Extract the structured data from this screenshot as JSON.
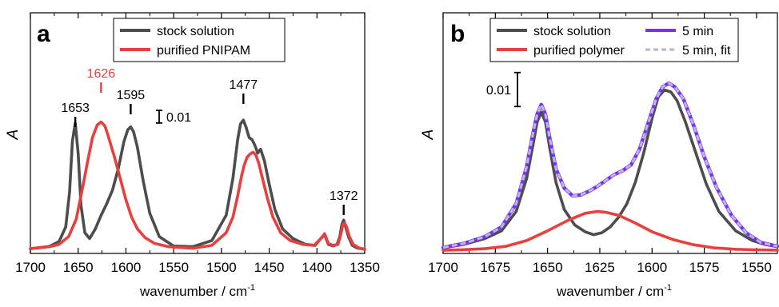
{
  "chart_data": [
    {
      "panel": "a",
      "type": "line",
      "xlabel": "wavenumber / cm",
      "xlabel_sup": "-1",
      "ylabel": "A",
      "xlim": [
        1700,
        1350
      ],
      "x_reversed": true,
      "x_ticks": [
        1700,
        1650,
        1600,
        1550,
        1500,
        1450,
        1400,
        1350
      ],
      "y_range": [
        0,
        1
      ],
      "y_ticks_labels": false,
      "scale_bar_label": "0.01",
      "scale_bar_size": 0.065,
      "legend_position": "top-center",
      "series": [
        {
          "name": "stock solution",
          "color": "#4d4d4d",
          "x": [
            1700,
            1680,
            1670,
            1663,
            1659,
            1656,
            1653,
            1650,
            1647,
            1643,
            1638,
            1632,
            1626,
            1620,
            1614,
            1608,
            1602,
            1598,
            1595,
            1592,
            1588,
            1582,
            1575,
            1565,
            1550,
            1530,
            1510,
            1495,
            1488,
            1483,
            1480,
            1477,
            1474,
            1471,
            1468,
            1465,
            1462,
            1459,
            1455,
            1450,
            1444,
            1436,
            1425,
            1412,
            1402,
            1396,
            1392,
            1388,
            1383,
            1379,
            1376,
            1374,
            1372,
            1370,
            1367,
            1363,
            1358,
            1350
          ],
          "y": [
            0.008,
            0.02,
            0.045,
            0.12,
            0.3,
            0.56,
            0.655,
            0.5,
            0.23,
            0.09,
            0.06,
            0.11,
            0.18,
            0.24,
            0.31,
            0.42,
            0.56,
            0.62,
            0.635,
            0.61,
            0.53,
            0.36,
            0.19,
            0.07,
            0.022,
            0.018,
            0.05,
            0.18,
            0.37,
            0.57,
            0.65,
            0.67,
            0.63,
            0.58,
            0.57,
            0.54,
            0.5,
            0.52,
            0.46,
            0.34,
            0.21,
            0.11,
            0.06,
            0.03,
            0.025,
            0.06,
            0.08,
            0.03,
            0.022,
            0.03,
            0.07,
            0.13,
            0.155,
            0.12,
            0.07,
            0.025,
            0.012,
            0.005
          ]
        },
        {
          "name": "purified PNIPAM",
          "color": "#e8403e",
          "x": [
            1700,
            1680,
            1670,
            1660,
            1652,
            1645,
            1640,
            1635,
            1630,
            1626,
            1622,
            1618,
            1612,
            1606,
            1600,
            1594,
            1588,
            1580,
            1570,
            1555,
            1530,
            1510,
            1495,
            1488,
            1483,
            1479,
            1476,
            1473,
            1470,
            1467,
            1464,
            1461,
            1457,
            1452,
            1446,
            1438,
            1428,
            1415,
            1403,
            1396,
            1392,
            1388,
            1383,
            1378,
            1375,
            1373,
            1371,
            1369,
            1366,
            1362,
            1356,
            1350
          ],
          "y": [
            0.008,
            0.018,
            0.03,
            0.07,
            0.16,
            0.33,
            0.46,
            0.58,
            0.645,
            0.66,
            0.64,
            0.58,
            0.48,
            0.37,
            0.26,
            0.17,
            0.11,
            0.065,
            0.035,
            0.018,
            0.01,
            0.025,
            0.09,
            0.17,
            0.28,
            0.38,
            0.44,
            0.48,
            0.495,
            0.505,
            0.49,
            0.45,
            0.37,
            0.27,
            0.17,
            0.09,
            0.05,
            0.03,
            0.025,
            0.06,
            0.085,
            0.035,
            0.025,
            0.03,
            0.08,
            0.13,
            0.14,
            0.12,
            0.07,
            0.03,
            0.012,
            0.005
          ]
        }
      ],
      "annotations": [
        {
          "text": "1653",
          "x": 1653,
          "color": "#000000"
        },
        {
          "text": "1626",
          "x": 1626,
          "color": "#e8403e"
        },
        {
          "text": "1595",
          "x": 1595,
          "color": "#000000"
        },
        {
          "text": "1477",
          "x": 1477,
          "color": "#000000"
        },
        {
          "text": "1372",
          "x": 1372,
          "color": "#000000"
        }
      ]
    },
    {
      "panel": "b",
      "type": "line",
      "xlabel": "wavenumber / cm",
      "xlabel_sup": "-1",
      "ylabel": "A",
      "xlim": [
        1700,
        1540
      ],
      "x_reversed": true,
      "x_ticks": [
        1700,
        1675,
        1650,
        1625,
        1600,
        1575,
        1550
      ],
      "y_range": [
        0,
        1
      ],
      "y_ticks_labels": false,
      "scale_bar_label": "0.01",
      "scale_bar_size": 0.175,
      "legend_position": "top",
      "series": [
        {
          "name": "stock solution",
          "color": "#4d4d4d",
          "x": [
            1700,
            1690,
            1680,
            1672,
            1665,
            1660,
            1657,
            1655,
            1653,
            1651,
            1649,
            1646,
            1642,
            1637,
            1632,
            1628,
            1624,
            1620,
            1616,
            1612,
            1608,
            1604,
            1600,
            1597,
            1594,
            1591,
            1588,
            1584,
            1579,
            1574,
            1568,
            1560,
            1552,
            1546,
            1540
          ],
          "y": [
            0.012,
            0.03,
            0.06,
            0.1,
            0.2,
            0.37,
            0.54,
            0.66,
            0.71,
            0.66,
            0.53,
            0.35,
            0.21,
            0.13,
            0.095,
            0.08,
            0.09,
            0.12,
            0.17,
            0.24,
            0.35,
            0.5,
            0.68,
            0.79,
            0.825,
            0.815,
            0.77,
            0.66,
            0.5,
            0.34,
            0.2,
            0.1,
            0.05,
            0.03,
            0.018
          ]
        },
        {
          "name": "purified polymer",
          "color": "#e8403e",
          "x": [
            1700,
            1690,
            1680,
            1670,
            1660,
            1650,
            1640,
            1632,
            1626,
            1622,
            1616,
            1608,
            1600,
            1590,
            1580,
            1570,
            1560,
            1550,
            1540
          ],
          "y": [
            0.0,
            0.003,
            0.008,
            0.02,
            0.05,
            0.1,
            0.155,
            0.19,
            0.2,
            0.195,
            0.18,
            0.14,
            0.095,
            0.055,
            0.028,
            0.012,
            0.005,
            0.002,
            0.001
          ]
        },
        {
          "name": "5 min",
          "color": "#7b2fff",
          "x": [
            1700,
            1690,
            1680,
            1672,
            1665,
            1660,
            1657,
            1655,
            1653,
            1651,
            1649,
            1646,
            1642,
            1638,
            1634,
            1630,
            1626,
            1622,
            1618,
            1614,
            1610,
            1606,
            1602,
            1598,
            1595,
            1592,
            1589,
            1585,
            1580,
            1575,
            1569,
            1562,
            1555,
            1548,
            1540
          ],
          "y": [
            0.014,
            0.035,
            0.07,
            0.12,
            0.24,
            0.43,
            0.6,
            0.7,
            0.75,
            0.7,
            0.58,
            0.42,
            0.32,
            0.28,
            0.285,
            0.305,
            0.33,
            0.36,
            0.39,
            0.41,
            0.44,
            0.52,
            0.65,
            0.78,
            0.84,
            0.86,
            0.84,
            0.78,
            0.64,
            0.48,
            0.32,
            0.18,
            0.09,
            0.04,
            0.02
          ]
        },
        {
          "name": "5 min, fit",
          "color": "#b8b8d0",
          "dashed": true,
          "x": [
            1700,
            1690,
            1680,
            1672,
            1665,
            1660,
            1657,
            1655,
            1653,
            1651,
            1649,
            1646,
            1642,
            1638,
            1634,
            1630,
            1626,
            1622,
            1618,
            1614,
            1610,
            1606,
            1602,
            1598,
            1595,
            1592,
            1589,
            1585,
            1580,
            1575,
            1569,
            1562,
            1555,
            1548,
            1540
          ],
          "y": [
            0.014,
            0.035,
            0.07,
            0.12,
            0.24,
            0.43,
            0.6,
            0.7,
            0.75,
            0.7,
            0.58,
            0.42,
            0.32,
            0.28,
            0.285,
            0.305,
            0.33,
            0.36,
            0.39,
            0.41,
            0.44,
            0.52,
            0.65,
            0.78,
            0.84,
            0.86,
            0.84,
            0.78,
            0.64,
            0.48,
            0.32,
            0.18,
            0.09,
            0.04,
            0.02
          ]
        }
      ],
      "annotations": []
    }
  ]
}
